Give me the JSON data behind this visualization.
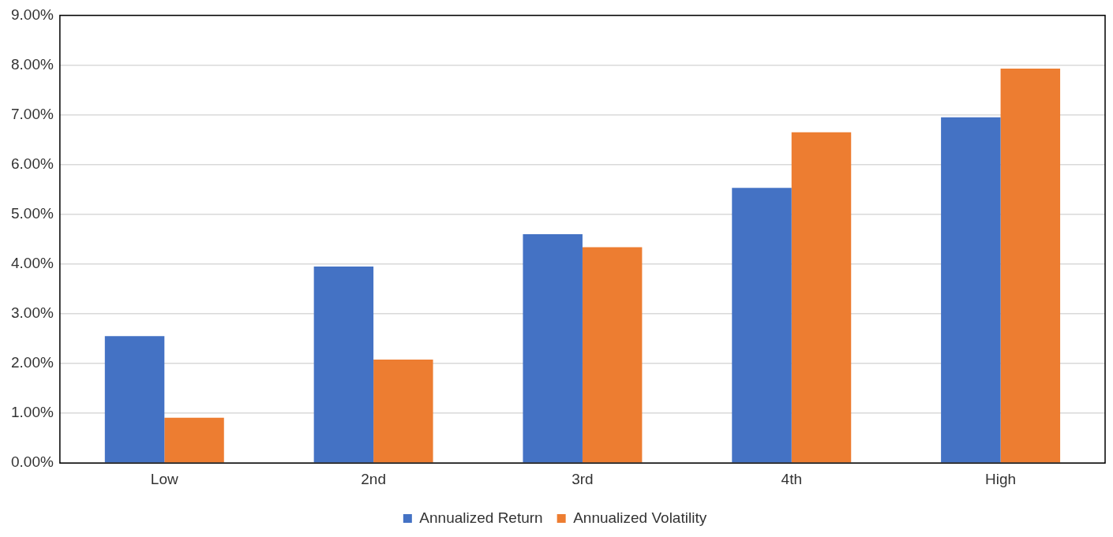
{
  "chart_data": {
    "type": "bar",
    "categories": [
      "Low",
      "2nd",
      "3rd",
      "4th",
      "High"
    ],
    "series": [
      {
        "name": "Annualized Return",
        "color": "#4472c4",
        "values": [
          2.55,
          3.95,
          4.6,
          5.53,
          6.95
        ]
      },
      {
        "name": "Annualized Volatility",
        "color": "#ed7d31",
        "values": [
          0.91,
          2.08,
          4.34,
          6.65,
          7.93
        ]
      }
    ],
    "ylim": [
      0,
      9
    ],
    "yticks": [
      {
        "value": 0,
        "label": "0.00%"
      },
      {
        "value": 1,
        "label": "1.00%"
      },
      {
        "value": 2,
        "label": "2.00%"
      },
      {
        "value": 3,
        "label": "3.00%"
      },
      {
        "value": 4,
        "label": "4.00%"
      },
      {
        "value": 5,
        "label": "5.00%"
      },
      {
        "value": 6,
        "label": "6.00%"
      },
      {
        "value": 7,
        "label": "7.00%"
      },
      {
        "value": 8,
        "label": "8.00%"
      },
      {
        "value": 9,
        "label": "9.00%"
      }
    ],
    "grid": "y",
    "legend": "bottom"
  }
}
